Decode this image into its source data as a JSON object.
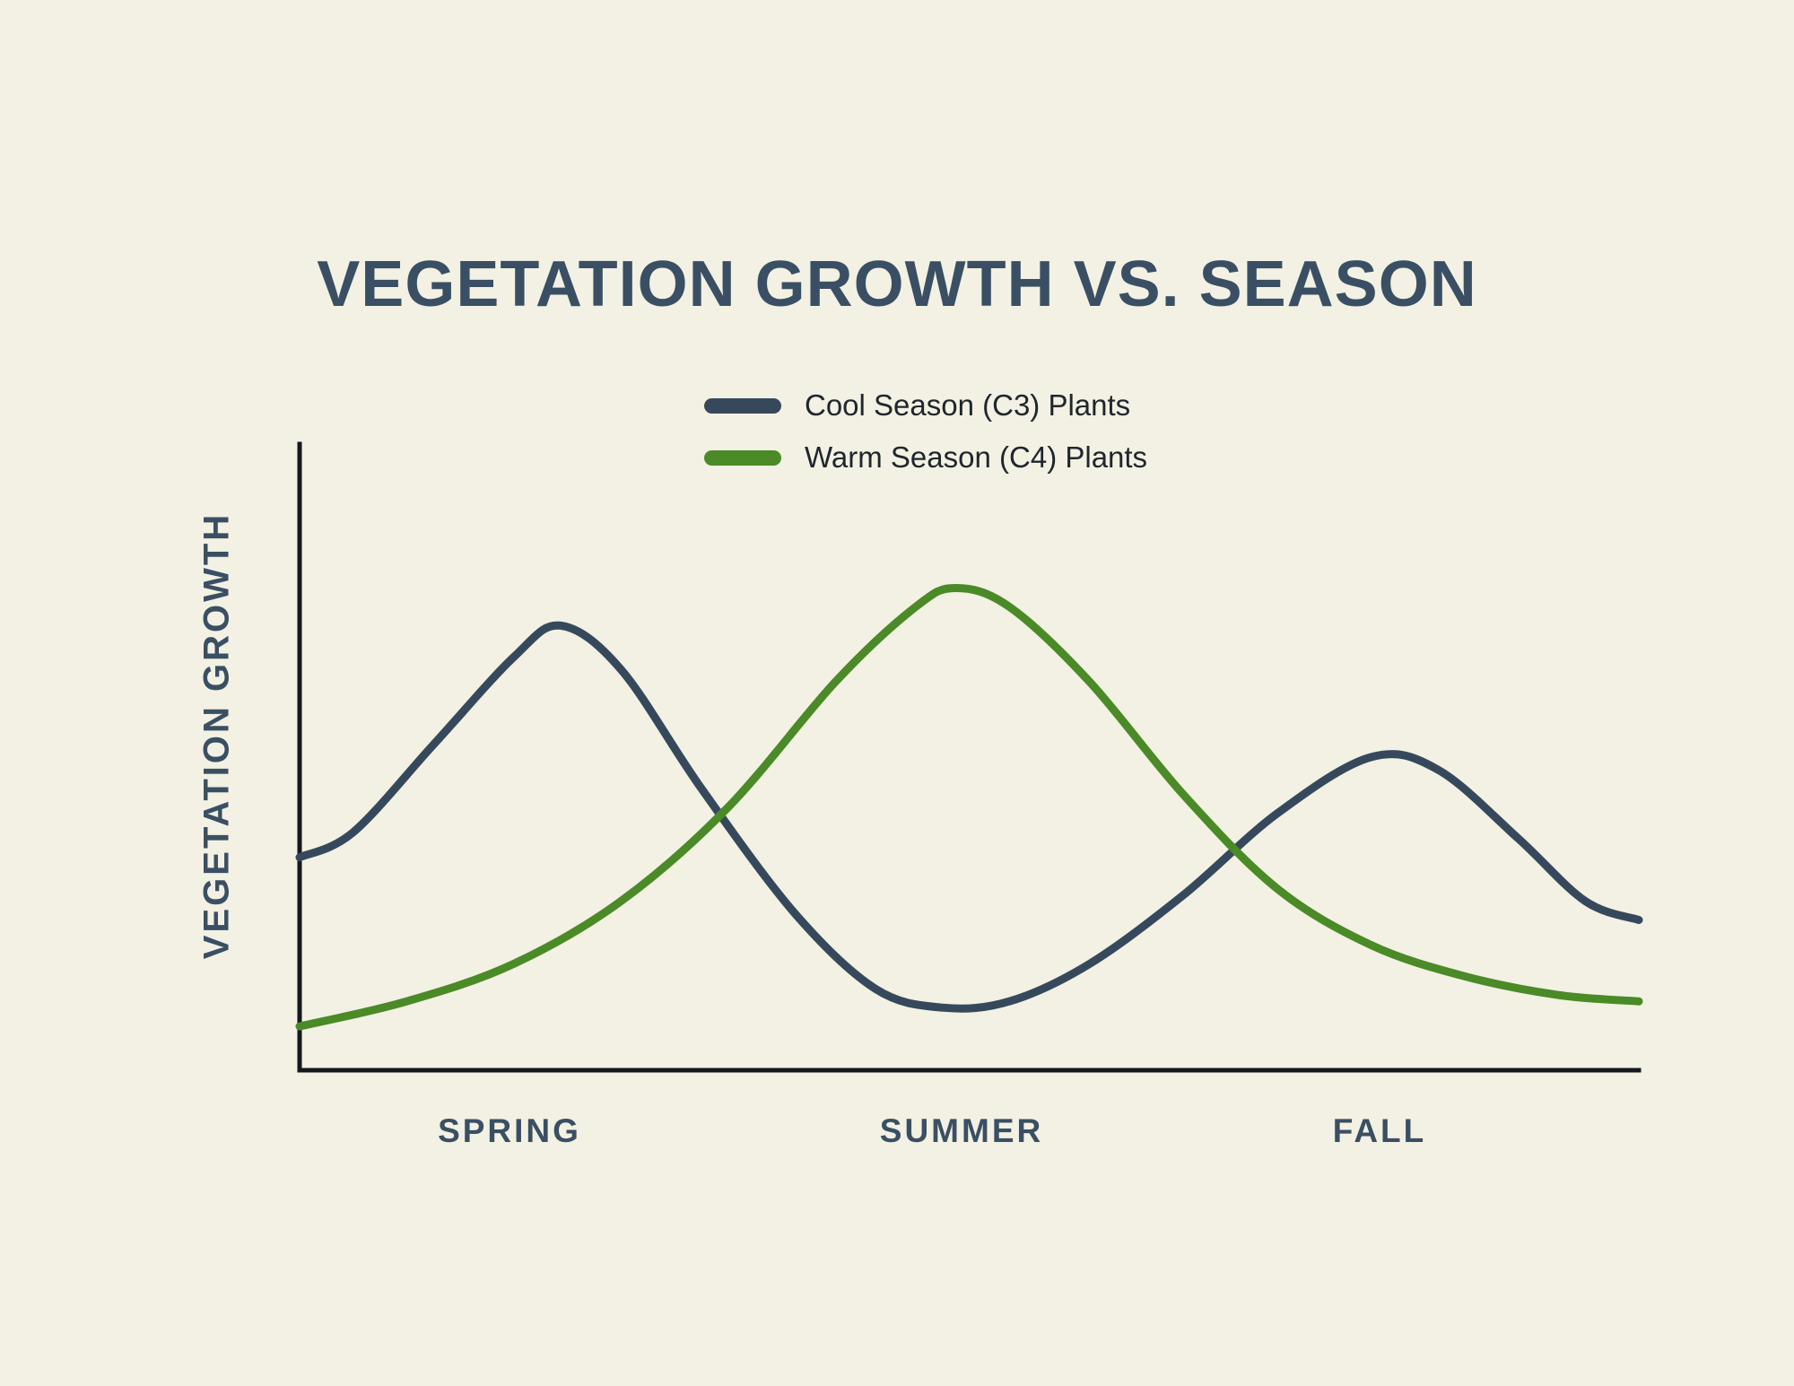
{
  "page": {
    "background": "#F2F1E3"
  },
  "chart_data": {
    "type": "line",
    "title": "VEGETATION GROWTH VS. SEASON",
    "ylabel": "VEGETATION GROWTH",
    "xlabel": "",
    "categories": [
      "SPRING",
      "SUMMER",
      "FALL"
    ],
    "legend_position": "top-center",
    "grid": false,
    "x_range": [
      0,
      100
    ],
    "ylim": [
      0,
      100
    ],
    "colors": {
      "title": "#3A4F63",
      "axis_labels": "#3A4F63",
      "legend_text": "#20262C",
      "axis": "#14181C",
      "background": "#F2F1E3"
    },
    "series": [
      {
        "name": "Cool Season (C3) Plants",
        "color": "#36495C",
        "x": [
          0,
          4,
          10,
          16,
          19.5,
          24,
          30,
          37,
          43,
          48,
          53,
          59,
          66,
          73,
          80,
          85,
          91,
          96,
          100
        ],
        "values": [
          34,
          38,
          52,
          66,
          71,
          64,
          45,
          25,
          13,
          10,
          11,
          17,
          28,
          41,
          50,
          48,
          37,
          27,
          24
        ]
      },
      {
        "name": "Warm Season (C4) Plants",
        "color": "#4A8A27",
        "x": [
          0,
          8,
          16,
          24,
          32,
          40,
          46,
          49,
          53,
          59,
          66,
          73,
          80,
          87,
          94,
          100
        ],
        "values": [
          7,
          11,
          17,
          27,
          42,
          62,
          74,
          77,
          74,
          62,
          44,
          29,
          20,
          15,
          12,
          11
        ]
      }
    ]
  }
}
